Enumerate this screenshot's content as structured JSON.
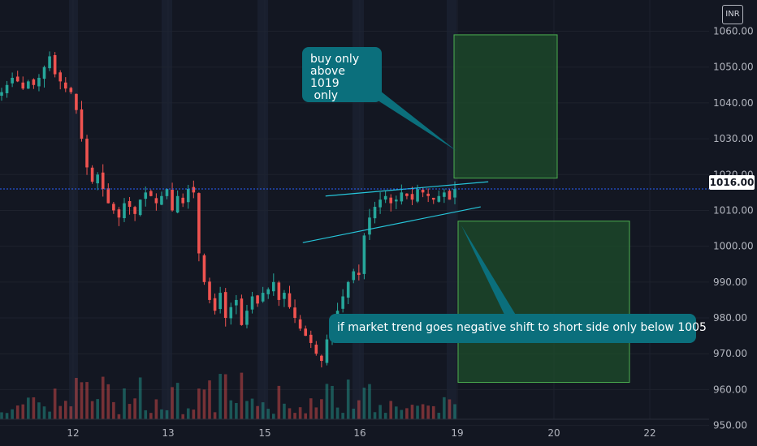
{
  "chart_data": {
    "type": "candlestick",
    "currency": "INR",
    "last_price_label": "1016.00",
    "y_ticks": [
      "950.00",
      "960.00",
      "970.00",
      "980.00",
      "990.00",
      "1000.00",
      "1010.00",
      "1020.00",
      "1030.00",
      "1040.00",
      "1050.00",
      "1060.00"
    ],
    "x_ticks": [
      "12",
      "13",
      "15",
      "16",
      "19",
      "20",
      "22"
    ],
    "ylim": [
      949,
      1066
    ],
    "grid": true,
    "series_close": [
      1043,
      1045,
      1047,
      1046,
      1044,
      1046,
      1045,
      1047,
      1050,
      1053,
      1048,
      1046,
      1044,
      1043,
      1038,
      1030,
      1022,
      1018,
      1020,
      1016,
      1012,
      1010,
      1008,
      1012,
      1011,
      1009,
      1013,
      1015,
      1014,
      1012,
      1014,
      1016,
      1010,
      1014,
      1012,
      1016,
      1015,
      998,
      990,
      985,
      982,
      987,
      980,
      983,
      985,
      978,
      982,
      986,
      984,
      987,
      988,
      990,
      985,
      987,
      983,
      980,
      977,
      975,
      973,
      970,
      968,
      974,
      978,
      982,
      986,
      990,
      993,
      992,
      1003,
      1008,
      1011,
      1013,
      1014,
      1012,
      1013,
      1015,
      1014,
      1013,
      1016,
      1015,
      1014,
      1013,
      1014,
      1015,
      1013,
      1016
    ],
    "annotations": [
      {
        "lines": [
          "buy only",
          "above 1019",
          " only"
        ]
      },
      {
        "lines": [
          "if market trend goes negative shift to short side only below 1005"
        ]
      }
    ],
    "zones": [
      {
        "price_from": 1019,
        "price_to": 1059,
        "color": "#1e4d2b"
      },
      {
        "price_from": 962,
        "price_to": 1007,
        "color": "#1e4d2b"
      }
    ],
    "trend_lines": [
      {
        "from": [
          0.43,
          1014
        ],
        "to": [
          0.645,
          1018
        ]
      },
      {
        "from": [
          0.4,
          1001
        ],
        "to": [
          0.635,
          1011
        ]
      }
    ]
  }
}
